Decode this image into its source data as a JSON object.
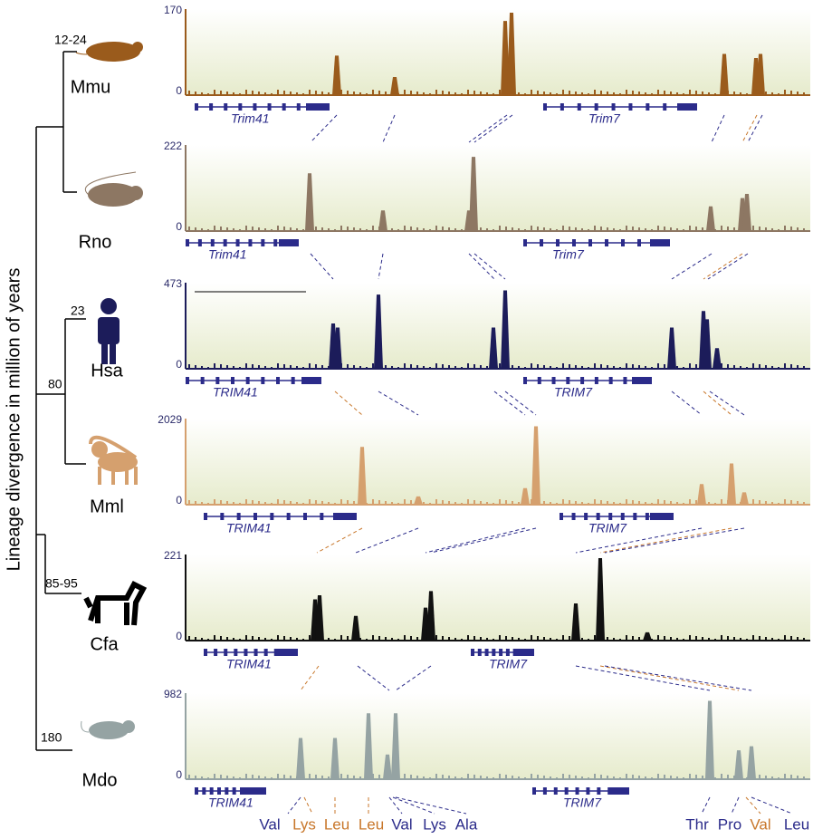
{
  "axis_label": "Lineage divergence in million of years",
  "divergences": [
    "12-24",
    "23",
    "80",
    "85-95",
    "180"
  ],
  "tracks": [
    {
      "species": "Mmu",
      "ymax": 170,
      "ymin": 0,
      "genes": [
        "Trim41",
        "Trim7"
      ],
      "color": "#9a5b1c"
    },
    {
      "species": "Rno",
      "ymax": 222,
      "ymin": 0,
      "genes": [
        "Trim41",
        "Trim7"
      ],
      "color": "#8d7763"
    },
    {
      "species": "Hsa",
      "ymax": 473,
      "ymin": 0,
      "genes": [
        "TRIM41",
        "TRIM7"
      ],
      "color": "#1c1c5a"
    },
    {
      "species": "Mml",
      "ymax": 2029,
      "ymin": 0,
      "genes": [
        "TRIM41",
        "TRIM7"
      ],
      "color": "#d5a06e"
    },
    {
      "species": "Cfa",
      "ymax": 221,
      "ymin": 0,
      "genes": [
        "TRIM41",
        "TRIM7"
      ],
      "color": "#111111"
    },
    {
      "species": "Mdo",
      "ymax": 982,
      "ymin": 0,
      "genes": [
        "TRIM41",
        "TRIM7"
      ],
      "color": "#95a3a3"
    }
  ],
  "codons": [
    {
      "name": "Val",
      "color": "#2b2b8a"
    },
    {
      "name": "Lys",
      "color": "#c8772b"
    },
    {
      "name": "Leu",
      "color": "#c8772b"
    },
    {
      "name": "Leu",
      "color": "#c8772b"
    },
    {
      "name": "Val",
      "color": "#2b2b8a"
    },
    {
      "name": "Lys",
      "color": "#2b2b8a"
    },
    {
      "name": "Ala",
      "color": "#2b2b8a"
    },
    {
      "name": "Thr",
      "color": "#2b2b8a"
    },
    {
      "name": "Pro",
      "color": "#2b2b8a"
    },
    {
      "name": "Val",
      "color": "#c8772b"
    },
    {
      "name": "Leu",
      "color": "#2b2b8a"
    }
  ]
}
